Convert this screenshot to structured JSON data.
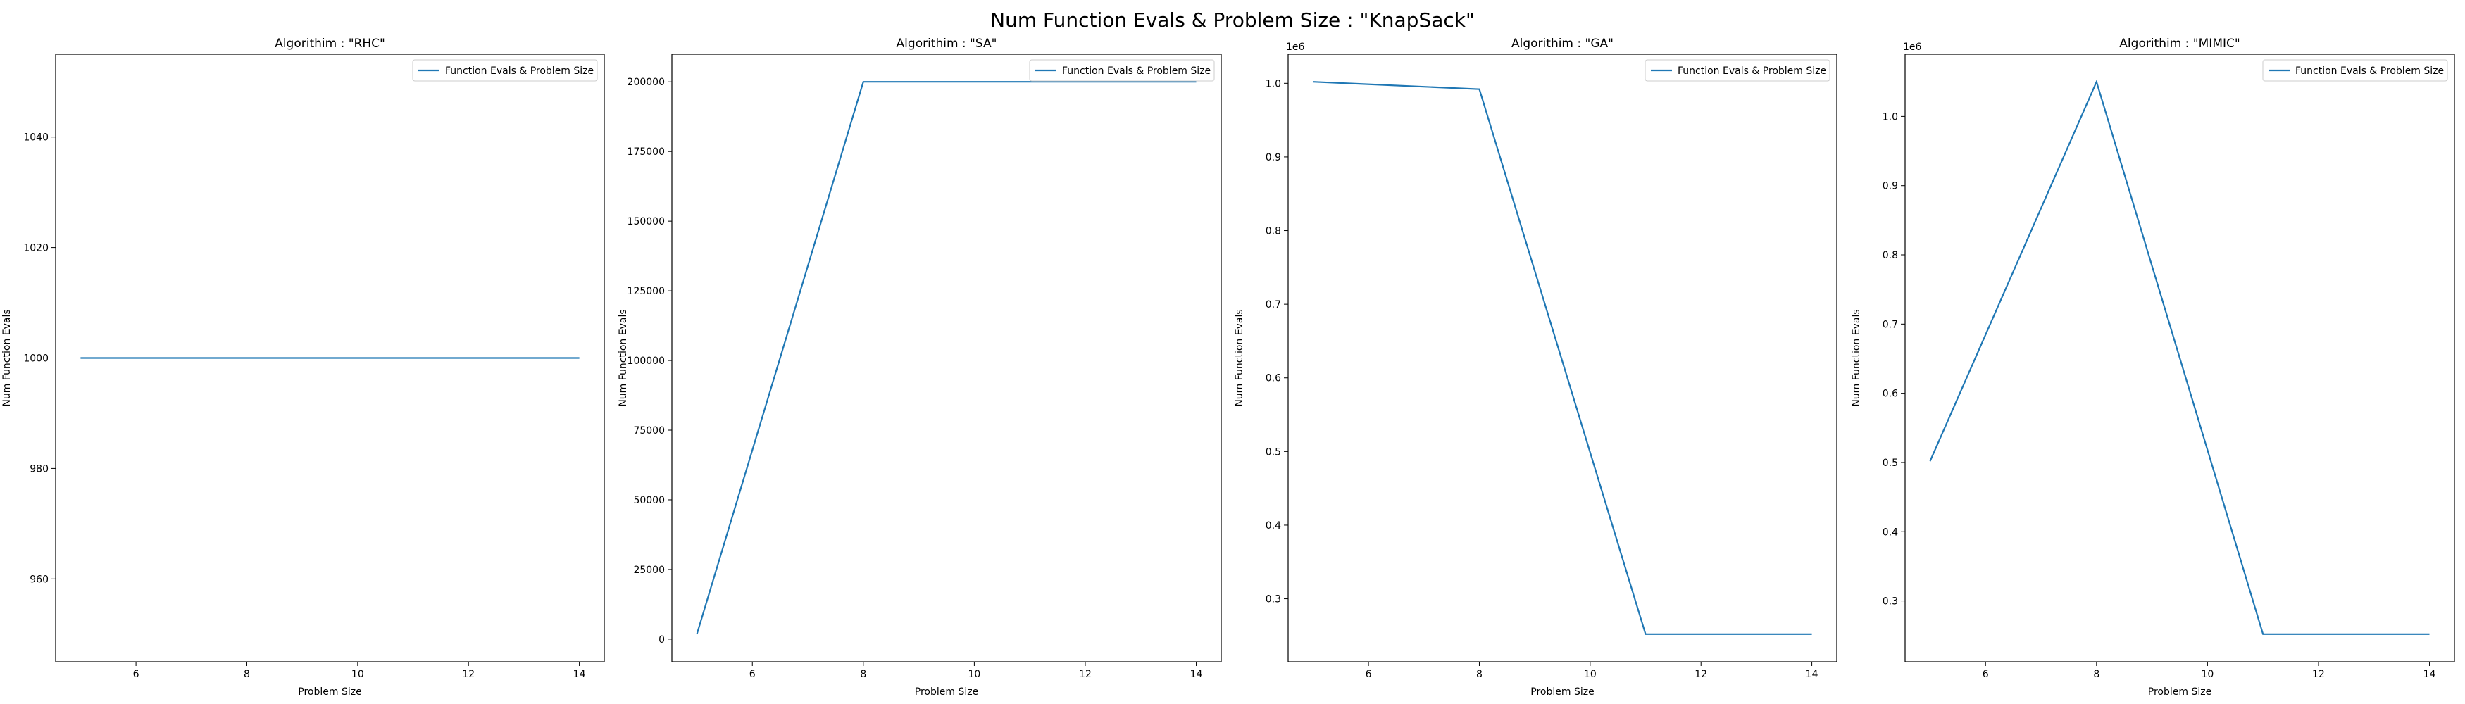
{
  "suptitle": "Num Function Evals & Problem Size : \"KnapSack\"",
  "chart_data": [
    {
      "type": "line",
      "title": "Algorithim : \"RHC\"",
      "xlabel": "Problem Size",
      "ylabel": "Num Function Evals",
      "x": [
        5,
        8,
        11,
        14
      ],
      "series": [
        {
          "name": "Function Evals & Problem Size",
          "values": [
            1000,
            1000,
            1000,
            1000
          ],
          "color": "#1f77b4"
        }
      ],
      "xlim": [
        4.55,
        14.45
      ],
      "ylim": [
        945,
        1055
      ],
      "xticks": [
        6,
        8,
        10,
        12,
        14
      ],
      "yticks": [
        960,
        980,
        1000,
        1020,
        1040
      ],
      "ytick_labels": [
        "960",
        "980",
        "1000",
        "1020",
        "1040"
      ],
      "offset_label": "",
      "legend": "upper right",
      "grid": false
    },
    {
      "type": "line",
      "title": "Algorithim : \"SA\"",
      "xlabel": "Problem Size",
      "ylabel": "Num Function Evals",
      "x": [
        5,
        8,
        11,
        14
      ],
      "series": [
        {
          "name": "Function Evals & Problem Size",
          "values": [
            1800,
            200000,
            200000,
            200000
          ],
          "color": "#1f77b4"
        }
      ],
      "xlim": [
        4.55,
        14.45
      ],
      "ylim": [
        -8110,
        209910
      ],
      "xticks": [
        6,
        8,
        10,
        12,
        14
      ],
      "yticks": [
        0,
        25000,
        50000,
        75000,
        100000,
        125000,
        150000,
        175000,
        200000
      ],
      "ytick_labels": [
        "0",
        "25000",
        "50000",
        "75000",
        "100000",
        "125000",
        "150000",
        "175000",
        "200000"
      ],
      "offset_label": "",
      "legend": "upper right",
      "grid": false
    },
    {
      "type": "line",
      "title": "Algorithim : \"GA\"",
      "xlabel": "Problem Size",
      "ylabel": "Num Function Evals",
      "x": [
        5,
        8,
        11,
        14
      ],
      "series": [
        {
          "name": "Function Evals & Problem Size",
          "values": [
            1002000,
            992000,
            252000,
            252000
          ],
          "color": "#1f77b4"
        }
      ],
      "xlim": [
        4.55,
        14.45
      ],
      "ylim": [
        214500,
        1039500
      ],
      "xticks": [
        6,
        8,
        10,
        12,
        14
      ],
      "yticks": [
        300000,
        400000,
        500000,
        600000,
        700000,
        800000,
        900000,
        1000000
      ],
      "ytick_labels": [
        "0.3",
        "0.4",
        "0.5",
        "0.6",
        "0.7",
        "0.8",
        "0.9",
        "1.0"
      ],
      "offset_label": "1e6",
      "legend": "upper right",
      "grid": false
    },
    {
      "type": "line",
      "title": "Algorithim : \"MIMIC\"",
      "xlabel": "Problem Size",
      "ylabel": "Num Function Evals",
      "x": [
        5,
        8,
        11,
        14
      ],
      "series": [
        {
          "name": "Function Evals & Problem Size",
          "values": [
            502000,
            1050000,
            252000,
            252000
          ],
          "color": "#1f77b4"
        }
      ],
      "xlim": [
        4.55,
        14.45
      ],
      "ylim": [
        212100,
        1089900
      ],
      "xticks": [
        6,
        8,
        10,
        12,
        14
      ],
      "yticks": [
        300000,
        400000,
        500000,
        600000,
        700000,
        800000,
        900000,
        1000000
      ],
      "ytick_labels": [
        "0.3",
        "0.4",
        "0.5",
        "0.6",
        "0.7",
        "0.8",
        "0.9",
        "1.0"
      ],
      "offset_label": "1e6",
      "legend": "upper right",
      "grid": false
    }
  ]
}
